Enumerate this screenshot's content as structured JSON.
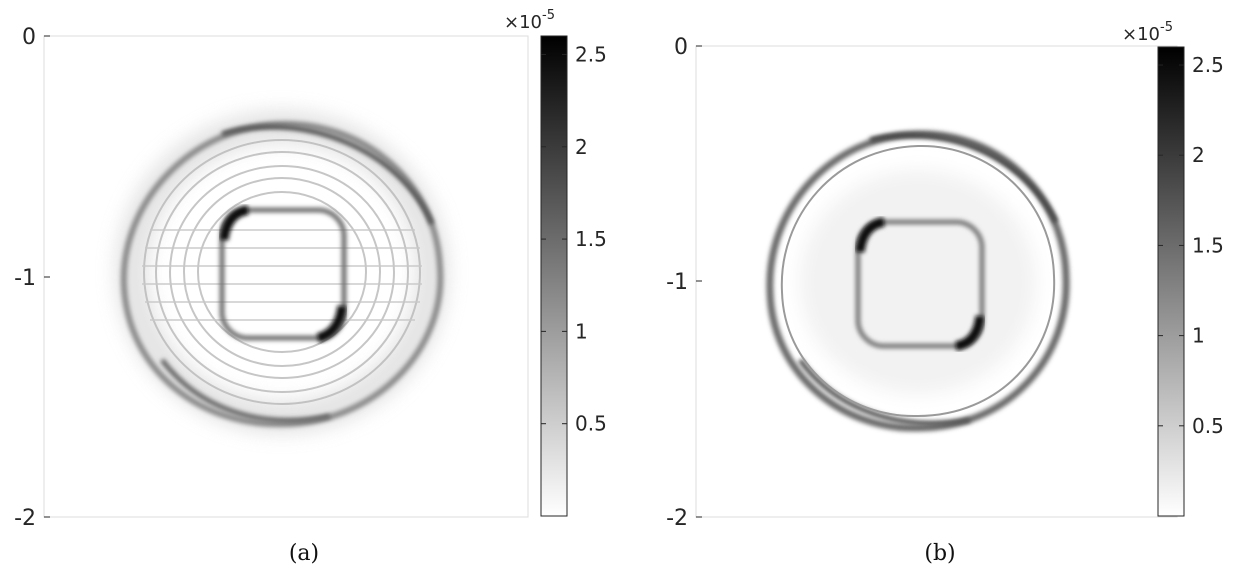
{
  "chart_data": [
    {
      "type": "heatmap",
      "caption": "(a)",
      "colormap": "gray-reversed",
      "yticks": [
        {
          "value": 0,
          "label": "0"
        },
        {
          "value": -1,
          "label": "-1"
        },
        {
          "value": -2,
          "label": "-2"
        }
      ],
      "ylim": [
        -2,
        0
      ],
      "colorbar": {
        "range": [
          0,
          2.6
        ],
        "multiplier": "×10",
        "exponent": "-5",
        "ticks": [
          {
            "value": 0.5,
            "label": "0.5"
          },
          {
            "value": 1,
            "label": "1"
          },
          {
            "value": 1.5,
            "label": "1.5"
          },
          {
            "value": 2,
            "label": "2"
          },
          {
            "value": 2.5,
            "label": "2.5"
          }
        ]
      },
      "field_features": [
        "outer wavefront ring",
        "inner rounded-square front",
        "oscillatory interference ripples"
      ]
    },
    {
      "type": "heatmap",
      "caption": "(b)",
      "colormap": "gray-reversed",
      "yticks": [
        {
          "value": 0,
          "label": "0"
        },
        {
          "value": -1,
          "label": "-1"
        },
        {
          "value": -2,
          "label": "-2"
        }
      ],
      "ylim": [
        -2,
        0
      ],
      "colorbar": {
        "range": [
          0,
          2.6
        ],
        "multiplier": "×10",
        "exponent": "-5",
        "ticks": [
          {
            "value": 0.5,
            "label": "0.5"
          },
          {
            "value": 1,
            "label": "1"
          },
          {
            "value": 1.5,
            "label": "1.5"
          },
          {
            "value": 2,
            "label": "2"
          },
          {
            "value": 2.5,
            "label": "2.5"
          }
        ]
      },
      "field_features": [
        "outer wavefront ring",
        "inner rounded-square front"
      ]
    }
  ]
}
